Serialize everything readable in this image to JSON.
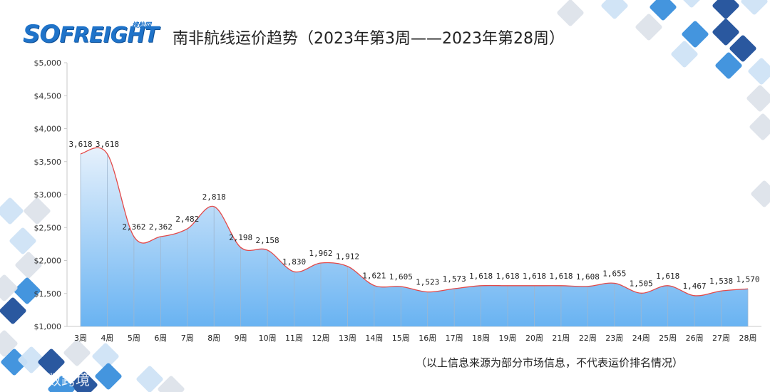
{
  "header": {
    "logo_text": "SOFREIGHT",
    "logo_cn": "搜航网",
    "title": "南非航线运价趋势（2023年第3周——2023年第28周）"
  },
  "footer": {
    "note": "（以上信息来源为部分市场信息，不代表运价排名情况）",
    "watermark": "大数跨境"
  },
  "colors": {
    "line": "#e34a4a",
    "fill_top": "#e6f1fc",
    "fill_bottom": "#69b3f2",
    "deco_blue": "#3a8fdc",
    "deco_dark": "#1f4f9a",
    "deco_light": "#cfe3f5",
    "deco_gray": "#dde3ea"
  },
  "chart_data": {
    "type": "area",
    "categories": [
      "3周",
      "4周",
      "5周",
      "6周",
      "7周",
      "8周",
      "9周",
      "10周",
      "11周",
      "12周",
      "13周",
      "14周",
      "15周",
      "16周",
      "17周",
      "18周",
      "19周",
      "20周",
      "21周",
      "22周",
      "23周",
      "24周",
      "25周",
      "26周",
      "27周",
      "28周"
    ],
    "values": [
      3618,
      3618,
      2362,
      2362,
      2482,
      2818,
      2198,
      2158,
      1830,
      1962,
      1912,
      1621,
      1605,
      1523,
      1573,
      1618,
      1618,
      1618,
      1618,
      1608,
      1655,
      1505,
      1618,
      1467,
      1538,
      1570
    ],
    "value_labels": [
      "3,618",
      "3,618",
      "2,362",
      "2,362",
      "2,482",
      "2,818",
      "2,198",
      "2,158",
      "1,830",
      "1,962",
      "1,912",
      "1,621",
      "1,605",
      "1,523",
      "1,573",
      "1,618",
      "1,618",
      "1,618",
      "1,618",
      "1,608",
      "1,655",
      "1,505",
      "1,618",
      "1,467",
      "1,538",
      "1,570"
    ],
    "yticks": [
      1000,
      1500,
      2000,
      2500,
      3000,
      3500,
      4000,
      4500,
      5000
    ],
    "ytick_labels": [
      "$1,000",
      "$1,500",
      "$2,000",
      "$2,500",
      "$3,000",
      "$3,500",
      "$4,000",
      "$4,500",
      "$5,000"
    ],
    "ylim": [
      1000,
      5000
    ],
    "smooth": true,
    "grid": false
  }
}
